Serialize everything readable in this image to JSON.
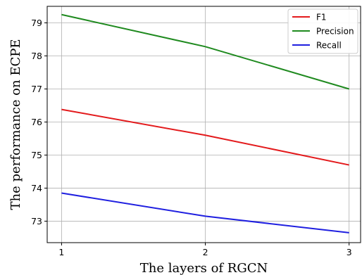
{
  "chart_data": {
    "type": "line",
    "x": [
      1,
      2,
      3
    ],
    "xticks": [
      "1",
      "2",
      "3"
    ],
    "yticks": [
      "73",
      "74",
      "75",
      "76",
      "77",
      "78",
      "79"
    ],
    "xlim": [
      0.9,
      3.08
    ],
    "ylim": [
      72.35,
      79.5
    ],
    "xlabel": "The layers of RGCN",
    "ylabel": "The performance on ECPE",
    "grid": true,
    "legend_position": "top-right",
    "series": [
      {
        "name": "F1",
        "color": "#e31a1c",
        "values": [
          76.38,
          75.6,
          74.7
        ]
      },
      {
        "name": "Precision",
        "color": "#1f8a1f",
        "values": [
          79.25,
          78.28,
          77.0
        ]
      },
      {
        "name": "Recall",
        "color": "#1f1fe0",
        "values": [
          73.85,
          73.15,
          72.65
        ]
      }
    ]
  }
}
